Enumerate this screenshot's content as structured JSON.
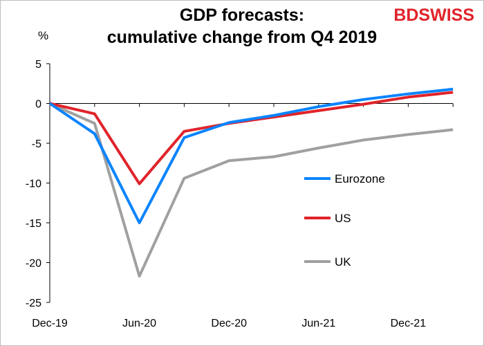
{
  "header": {
    "title_line1": "GDP forecasts:",
    "title_line2": "cumulative change from Q4 2019",
    "brand_part1": "BD",
    "brand_part2": "SWISS"
  },
  "chart_data": {
    "type": "line",
    "title": "GDP forecasts: cumulative change from Q4 2019",
    "ylabel": "%",
    "xlabel": "",
    "ylim": [
      -25,
      5
    ],
    "yticks": [
      5,
      0,
      -5,
      -10,
      -15,
      -20,
      -25
    ],
    "x": [
      "Dec-19",
      "Mar-20",
      "Jun-20",
      "Sep-20",
      "Dec-20",
      "Mar-21",
      "Jun-21",
      "Sep-21",
      "Dec-21",
      "Mar-22"
    ],
    "xtick_labels": [
      "Dec-19",
      "Jun-20",
      "Dec-20",
      "Jun-21",
      "Dec-21"
    ],
    "xtick_indices": [
      0,
      2,
      4,
      6,
      8
    ],
    "series": [
      {
        "name": "Eurozone",
        "color": "#0a84ff",
        "values": [
          0,
          -3.8,
          -15.0,
          -4.3,
          -2.4,
          -1.5,
          -0.4,
          0.5,
          1.2,
          1.8
        ]
      },
      {
        "name": "US",
        "color": "#e0232a",
        "values": [
          0,
          -1.3,
          -10.1,
          -3.5,
          -2.5,
          -1.7,
          -0.9,
          -0.1,
          0.8,
          1.4
        ]
      },
      {
        "name": "UK",
        "color": "#a0a0a0",
        "values": [
          0,
          -2.5,
          -21.7,
          -9.4,
          -7.2,
          -6.7,
          -5.6,
          -4.6,
          -3.9,
          -3.3
        ]
      }
    ],
    "legend_placement": "right-center",
    "grid": false
  }
}
